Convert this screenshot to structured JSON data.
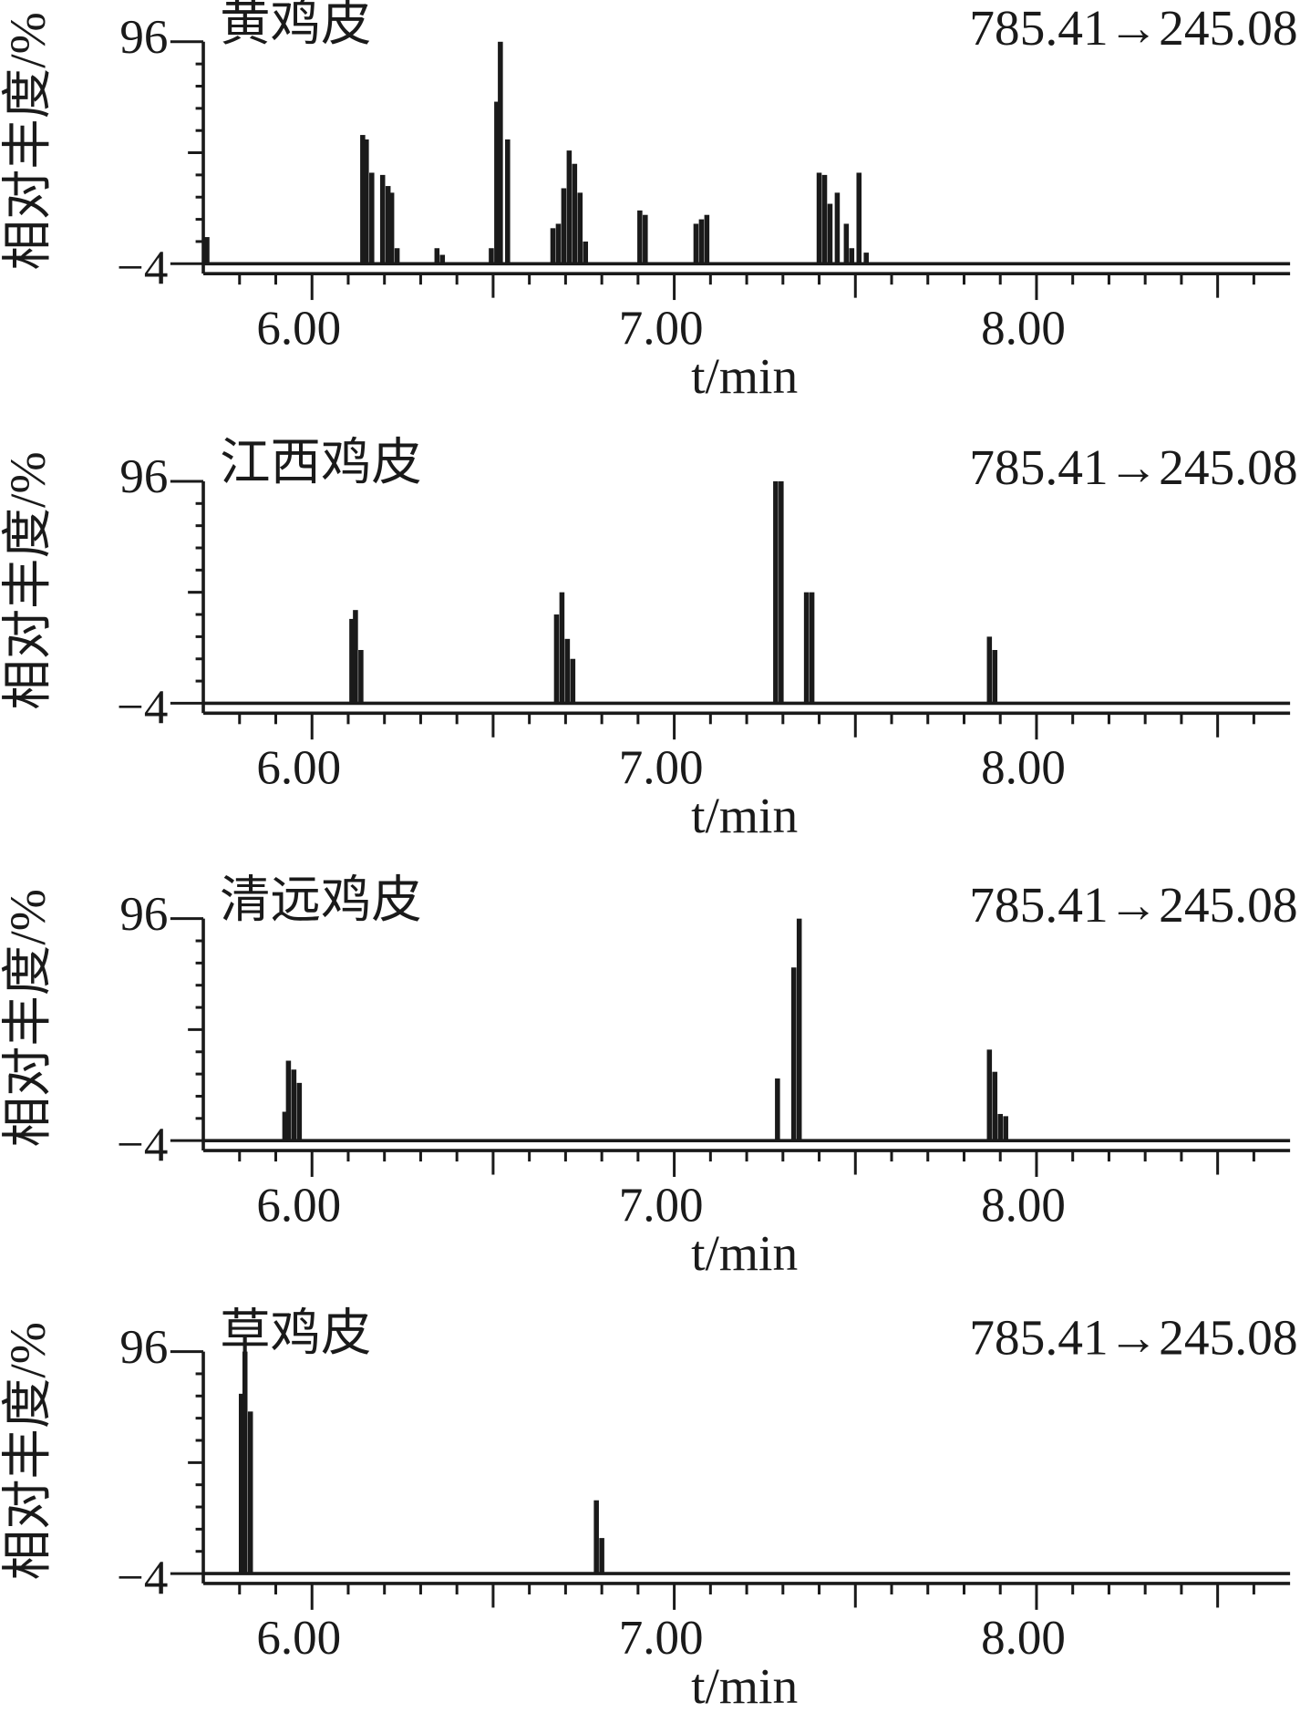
{
  "chart_data": [
    {
      "type": "bar",
      "title": "黄鸡皮",
      "annotation": "785.41→245.08",
      "xlabel": "t/min",
      "ylabel": "相对丰度/%",
      "x": [
        5.71,
        6.14,
        6.15,
        6.165,
        6.195,
        6.21,
        6.22,
        6.235,
        6.345,
        6.36,
        6.495,
        6.51,
        6.52,
        6.54,
        6.665,
        6.68,
        6.695,
        6.71,
        6.725,
        6.74,
        6.755,
        6.905,
        6.92,
        7.06,
        7.075,
        7.09,
        7.4,
        7.415,
        7.43,
        7.45,
        7.475,
        7.49,
        7.51,
        7.53
      ],
      "values": [
        8,
        54,
        52,
        37,
        36,
        31,
        28,
        3,
        3,
        0,
        3,
        69,
        96,
        52,
        12,
        14,
        30,
        47,
        41,
        28,
        6,
        20,
        18,
        14,
        16,
        18,
        37,
        36,
        23,
        28,
        14,
        3,
        37,
        1
      ],
      "color": "#1a1a1a",
      "xlim": [
        5.7,
        8.7
      ],
      "xticks": [
        {
          "value": 6,
          "label": "6.00"
        },
        {
          "value": 7,
          "label": "7.00"
        },
        {
          "value": 8,
          "label": "8.00"
        }
      ],
      "minor_xticks": [
        5.8,
        5.9,
        6.1,
        6.2,
        6.3,
        6.4,
        6.5,
        6.6,
        6.7,
        6.8,
        6.9,
        7.1,
        7.2,
        7.3,
        7.4,
        7.5,
        7.6,
        7.7,
        7.8,
        7.9,
        8.1,
        8.2,
        8.3,
        8.4,
        8.5,
        8.6
      ],
      "ylim": [
        -4,
        96
      ],
      "yticks": [
        {
          "value": -4,
          "label": "−4"
        },
        96
      ],
      "minor_yticks": [
        6,
        16,
        26,
        36,
        46,
        56,
        66,
        76,
        86
      ]
    },
    {
      "type": "bar",
      "title": "江西鸡皮",
      "annotation": "785.41→245.08",
      "xlabel": "t/min",
      "ylabel": "相对丰度/%",
      "x": [
        6.11,
        6.12,
        6.135,
        6.675,
        6.69,
        6.705,
        6.72,
        7.28,
        7.295,
        7.365,
        7.38,
        7.87,
        7.885
      ],
      "values": [
        34,
        38,
        20,
        36,
        46,
        25,
        16,
        96,
        96,
        46,
        46,
        26,
        20
      ],
      "color": "#1a1a1a",
      "xlim": [
        5.7,
        8.7
      ],
      "xticks": [
        {
          "value": 6,
          "label": "6.00"
        },
        {
          "value": 7,
          "label": "7.00"
        },
        {
          "value": 8,
          "label": "8.00"
        }
      ],
      "minor_xticks": [
        5.8,
        5.9,
        6.1,
        6.2,
        6.3,
        6.4,
        6.5,
        6.6,
        6.7,
        6.8,
        6.9,
        7.1,
        7.2,
        7.3,
        7.4,
        7.5,
        7.6,
        7.7,
        7.8,
        7.9,
        8.1,
        8.2,
        8.3,
        8.4,
        8.5,
        8.6
      ],
      "ylim": [
        -4,
        96
      ],
      "yticks": [
        {
          "value": -4,
          "label": "−4"
        },
        96
      ],
      "minor_yticks": [
        6,
        16,
        26,
        36,
        46,
        56,
        66,
        76,
        86
      ]
    },
    {
      "type": "bar",
      "title": "清远鸡皮",
      "annotation": "785.41→245.08",
      "xlabel": "t/min",
      "ylabel": "相对丰度/%",
      "x": [
        5.925,
        5.935,
        5.95,
        5.965,
        7.285,
        7.33,
        7.345,
        7.87,
        7.885,
        7.9,
        7.915
      ],
      "values": [
        9,
        32,
        28,
        22,
        24,
        74,
        96,
        37,
        27,
        8,
        7
      ],
      "color": "#1a1a1a",
      "xlim": [
        5.7,
        8.7
      ],
      "xticks": [
        {
          "value": 6,
          "label": "6.00"
        },
        {
          "value": 7,
          "label": "7.00"
        },
        {
          "value": 8,
          "label": "8.00"
        }
      ],
      "minor_xticks": [
        5.8,
        5.9,
        6.1,
        6.2,
        6.3,
        6.4,
        6.5,
        6.6,
        6.7,
        6.8,
        6.9,
        7.1,
        7.2,
        7.3,
        7.4,
        7.5,
        7.6,
        7.7,
        7.8,
        7.9,
        8.1,
        8.2,
        8.3,
        8.4,
        8.5,
        8.6
      ],
      "ylim": [
        -4,
        96
      ],
      "yticks": [
        {
          "value": -4,
          "label": "−4"
        },
        96
      ],
      "minor_yticks": [
        6,
        16,
        26,
        36,
        46,
        56,
        66,
        76,
        86
      ]
    },
    {
      "type": "bar",
      "title": "草鸡皮",
      "annotation": "785.41→245.08",
      "xlabel": "t/min",
      "ylabel": "相对丰度/%",
      "x": [
        5.805,
        5.815,
        5.83,
        6.785,
        6.8
      ],
      "values": [
        77,
        96,
        69,
        29,
        12
      ],
      "color": "#1a1a1a",
      "xlim": [
        5.7,
        8.7
      ],
      "xticks": [
        {
          "value": 6,
          "label": "6.00"
        },
        {
          "value": 7,
          "label": "7.00"
        },
        {
          "value": 8,
          "label": "8.00"
        }
      ],
      "minor_xticks": [
        5.8,
        5.9,
        6.1,
        6.2,
        6.3,
        6.4,
        6.5,
        6.6,
        6.7,
        6.8,
        6.9,
        7.1,
        7.2,
        7.3,
        7.4,
        7.5,
        7.6,
        7.7,
        7.8,
        7.9,
        8.1,
        8.2,
        8.3,
        8.4,
        8.5,
        8.6
      ],
      "ylim": [
        -4,
        96
      ],
      "yticks": [
        {
          "value": -4,
          "label": "−4"
        },
        96
      ],
      "minor_yticks": [
        6,
        16,
        26,
        36,
        46,
        56,
        66,
        76,
        86
      ]
    }
  ]
}
